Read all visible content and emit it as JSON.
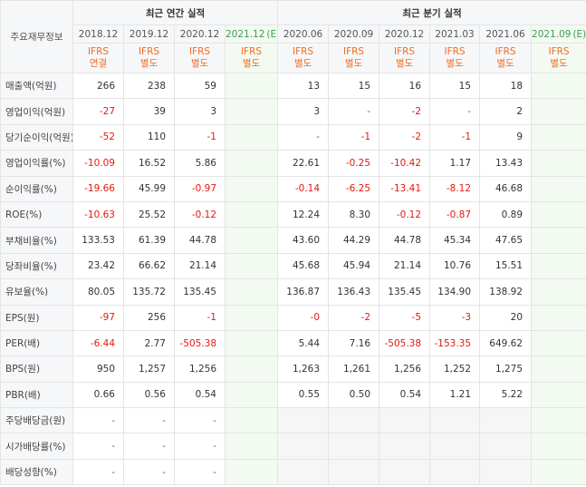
{
  "header": {
    "corner_label": "주요재무정보",
    "annual_group": "최근 연간 실적",
    "quarter_group": "최근 분기 실적",
    "columns": [
      {
        "date": "2018.12",
        "suffix": "",
        "std1": "IFRS",
        "std2": "연결"
      },
      {
        "date": "2019.12",
        "suffix": "",
        "std1": "IFRS",
        "std2": "별도"
      },
      {
        "date": "2020.12",
        "suffix": "",
        "std1": "IFRS",
        "std2": "별도"
      },
      {
        "date": "2021.12",
        "suffix": "(E)",
        "std1": "IFRS",
        "std2": "별도"
      },
      {
        "date": "2020.06",
        "suffix": "",
        "std1": "IFRS",
        "std2": "별도"
      },
      {
        "date": "2020.09",
        "suffix": "",
        "std1": "IFRS",
        "std2": "별도"
      },
      {
        "date": "2020.12",
        "suffix": "",
        "std1": "IFRS",
        "std2": "별도"
      },
      {
        "date": "2021.03",
        "suffix": "",
        "std1": "IFRS",
        "std2": "별도"
      },
      {
        "date": "2021.06",
        "suffix": "",
        "std1": "IFRS",
        "std2": "별도"
      },
      {
        "date": "2021.09",
        "suffix": "(E)",
        "std1": "IFRS",
        "std2": "별도"
      }
    ]
  },
  "rows": [
    {
      "label": "매출액(억원)",
      "values": [
        "266",
        "238",
        "59",
        "",
        "13",
        "15",
        "16",
        "15",
        "18",
        ""
      ]
    },
    {
      "label": "영업이익(억원)",
      "values": [
        "-27",
        "39",
        "3",
        "",
        "3",
        "-",
        "-2",
        "-",
        "2",
        ""
      ]
    },
    {
      "label": "당기순이익(억원)",
      "values": [
        "-52",
        "110",
        "-1",
        "",
        "-",
        "-1",
        "-2",
        "-1",
        "9",
        ""
      ]
    },
    {
      "label": "영업이익률(%)",
      "values": [
        "-10.09",
        "16.52",
        "5.86",
        "",
        "22.61",
        "-0.25",
        "-10.42",
        "1.17",
        "13.43",
        ""
      ]
    },
    {
      "label": "순이익률(%)",
      "values": [
        "-19.66",
        "45.99",
        "-0.97",
        "",
        "-0.14",
        "-6.25",
        "-13.41",
        "-8.12",
        "46.68",
        ""
      ]
    },
    {
      "label": "ROE(%)",
      "values": [
        "-10.63",
        "25.52",
        "-0.12",
        "",
        "12.24",
        "8.30",
        "-0.12",
        "-0.87",
        "0.89",
        ""
      ]
    },
    {
      "label": "부채비율(%)",
      "values": [
        "133.53",
        "61.39",
        "44.78",
        "",
        "43.60",
        "44.29",
        "44.78",
        "45.34",
        "47.65",
        ""
      ]
    },
    {
      "label": "당좌비율(%)",
      "values": [
        "23.42",
        "66.62",
        "21.14",
        "",
        "45.68",
        "45.94",
        "21.14",
        "10.76",
        "15.51",
        ""
      ]
    },
    {
      "label": "유보율(%)",
      "values": [
        "80.05",
        "135.72",
        "135.45",
        "",
        "136.87",
        "136.43",
        "135.45",
        "134.90",
        "138.92",
        ""
      ]
    },
    {
      "label": "EPS(원)",
      "values": [
        "-97",
        "256",
        "-1",
        "",
        "-0",
        "-2",
        "-5",
        "-3",
        "20",
        ""
      ]
    },
    {
      "label": "PER(배)",
      "values": [
        "-6.44",
        "2.77",
        "-505.38",
        "",
        "5.44",
        "7.16",
        "-505.38",
        "-153.35",
        "649.62",
        ""
      ]
    },
    {
      "label": "BPS(원)",
      "values": [
        "950",
        "1,257",
        "1,256",
        "",
        "1,263",
        "1,261",
        "1,256",
        "1,252",
        "1,275",
        ""
      ]
    },
    {
      "label": "PBR(배)",
      "values": [
        "0.66",
        "0.56",
        "0.54",
        "",
        "0.55",
        "0.50",
        "0.54",
        "1.21",
        "5.22",
        ""
      ]
    },
    {
      "label": "주당배당금(원)",
      "values": [
        "-",
        "-",
        "-",
        "",
        "",
        "",
        "",
        "",
        "",
        ""
      ]
    },
    {
      "label": "시가배당률(%)",
      "values": [
        "-",
        "-",
        "-",
        "",
        "",
        "",
        "",
        "",
        "",
        ""
      ]
    },
    {
      "label": "배당성향(%)",
      "values": [
        "-",
        "-",
        "-",
        "",
        "",
        "",
        "",
        "",
        "",
        ""
      ]
    }
  ],
  "colors": {
    "negative": "#e8170d",
    "standard": "#f36b20",
    "estimate_header": "#3f9c52",
    "estimate_cell": "#f3faf1",
    "empty_cell": "#f6f6f6"
  }
}
